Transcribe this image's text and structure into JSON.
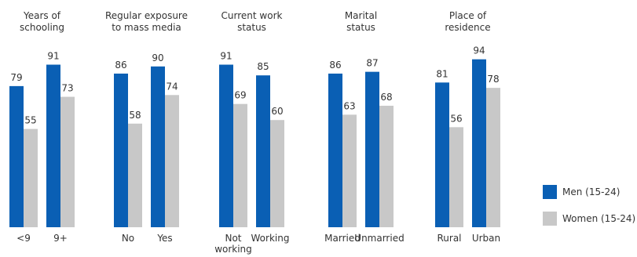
{
  "chart_data": {
    "type": "bar",
    "ylim": [
      0,
      100
    ],
    "grid": false,
    "legend_position": "bottom-right",
    "series": [
      {
        "name": "Men (15-24)",
        "color": "#0a5fb4"
      },
      {
        "name": "Women (15-24)",
        "color": "#c8c8c8"
      }
    ],
    "groups": [
      {
        "title": [
          "Years of",
          "schooling"
        ],
        "categories": [
          {
            "label": [
              "<9"
            ],
            "values": [
              79,
              55
            ]
          },
          {
            "label": [
              "9+"
            ],
            "values": [
              91,
              73
            ]
          }
        ]
      },
      {
        "title": [
          "Regular exposure",
          "to mass media"
        ],
        "categories": [
          {
            "label": [
              "No"
            ],
            "values": [
              86,
              58
            ]
          },
          {
            "label": [
              "Yes"
            ],
            "values": [
              90,
              74
            ]
          }
        ]
      },
      {
        "title": [
          "Current work",
          "status"
        ],
        "categories": [
          {
            "label": [
              "Not",
              "working"
            ],
            "values": [
              91,
              69
            ]
          },
          {
            "label": [
              "Working"
            ],
            "values": [
              85,
              60
            ]
          }
        ]
      },
      {
        "title": [
          "Marital",
          "status"
        ],
        "categories": [
          {
            "label": [
              "Married"
            ],
            "values": [
              86,
              63
            ]
          },
          {
            "label": [
              "Unmarried"
            ],
            "values": [
              87,
              68
            ]
          }
        ]
      },
      {
        "title": [
          "Place of",
          "residence"
        ],
        "categories": [
          {
            "label": [
              "Rural"
            ],
            "values": [
              81,
              56
            ]
          },
          {
            "label": [
              "Urban"
            ],
            "values": [
              94,
              78
            ]
          }
        ]
      }
    ]
  }
}
